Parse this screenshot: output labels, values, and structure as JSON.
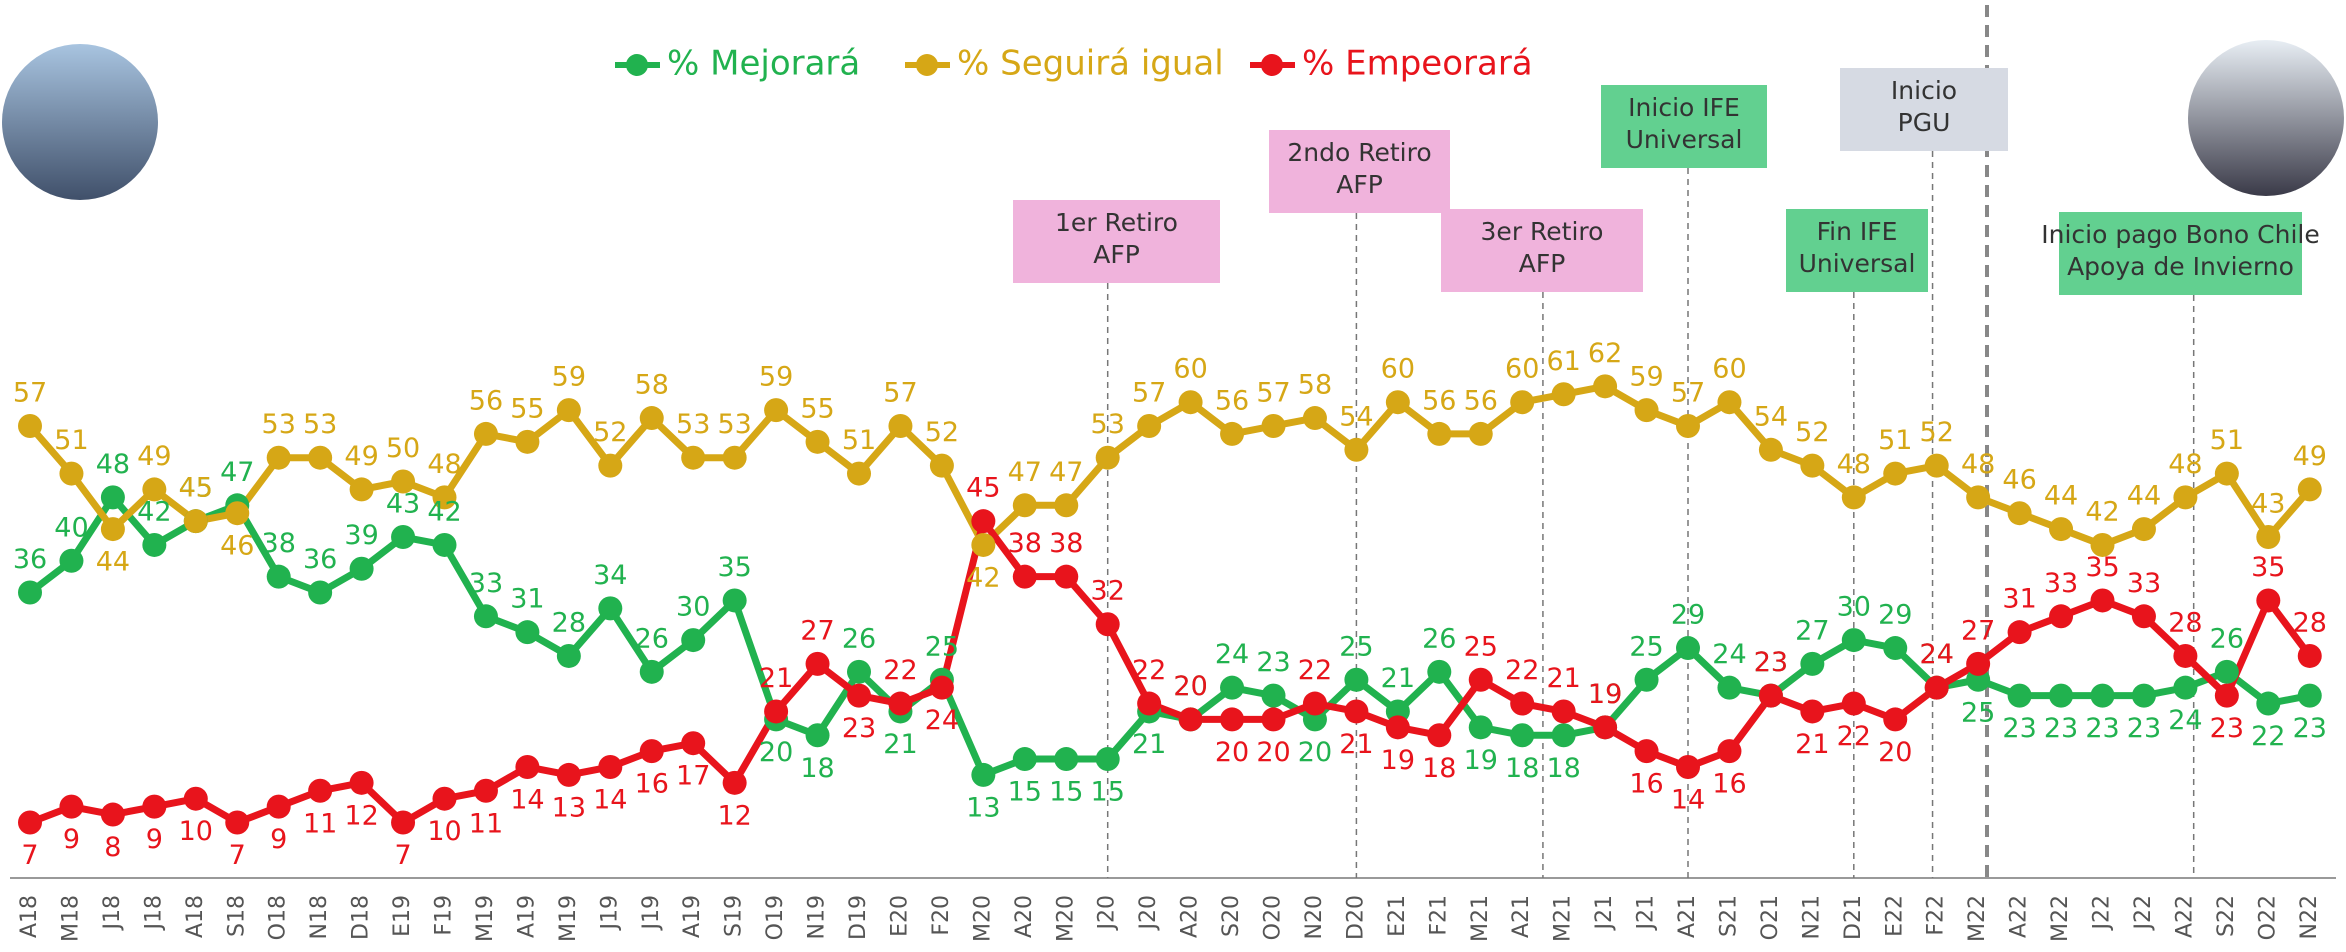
{
  "chart_data": {
    "type": "line",
    "categories": [
      "A18",
      "M18",
      "J18",
      "J18",
      "A18",
      "S18",
      "O18",
      "N18",
      "D18",
      "E19",
      "F19",
      "M19",
      "A19",
      "M19",
      "J19",
      "J19",
      "A19",
      "S19",
      "O19",
      "N19",
      "D19",
      "E20",
      "F20",
      "M20",
      "A20",
      "M20",
      "J20",
      "J20",
      "A20",
      "S20",
      "O20",
      "N20",
      "D20",
      "E21",
      "F21",
      "M21",
      "A21",
      "M21",
      "J21",
      "J21",
      "A21",
      "S21",
      "O21",
      "N21",
      "D21",
      "E22",
      "F22",
      "M22",
      "A22",
      "M22",
      "J22",
      "J22",
      "A22",
      "S22",
      "O22",
      "N22"
    ],
    "series": [
      {
        "name": "% Mejorará",
        "color": "#21b24f",
        "values": [
          36,
          40,
          48,
          42,
          45,
          47,
          38,
          36,
          39,
          43,
          42,
          33,
          31,
          28,
          34,
          26,
          30,
          35,
          20,
          18,
          26,
          21,
          25,
          13,
          15,
          15,
          15,
          21,
          20,
          24,
          23,
          20,
          25,
          21,
          26,
          19,
          18,
          18,
          19,
          25,
          29,
          24,
          23,
          27,
          30,
          29,
          24,
          25,
          23,
          23,
          23,
          23,
          24,
          26,
          22,
          23
        ]
      },
      {
        "name": "% Seguirá igual",
        "color": "#d6a716",
        "values": [
          57,
          51,
          44,
          49,
          45,
          46,
          53,
          53,
          49,
          50,
          48,
          56,
          55,
          59,
          52,
          58,
          53,
          53,
          59,
          55,
          51,
          57,
          52,
          42,
          47,
          47,
          53,
          57,
          60,
          56,
          57,
          58,
          54,
          60,
          56,
          56,
          60,
          61,
          62,
          59,
          57,
          60,
          54,
          52,
          48,
          51,
          52,
          48,
          46,
          44,
          42,
          44,
          48,
          51,
          43,
          49
        ]
      },
      {
        "name": "% Empeorará",
        "color": "#e8141c",
        "values": [
          7,
          9,
          8,
          9,
          10,
          7,
          9,
          11,
          12,
          7,
          10,
          11,
          14,
          13,
          14,
          16,
          17,
          12,
          21,
          27,
          23,
          22,
          24,
          45,
          38,
          38,
          32,
          22,
          20,
          20,
          20,
          22,
          21,
          19,
          18,
          25,
          22,
          21,
          19,
          16,
          14,
          16,
          23,
          21,
          22,
          20,
          24,
          27,
          31,
          33,
          35,
          33,
          28,
          23,
          35,
          28
        ]
      }
    ],
    "ylim": [
      0,
      100
    ],
    "annotations": [
      {
        "lines": [
          "1er Retiro",
          "AFP"
        ],
        "color": "#f0b3dc"
      },
      {
        "lines": [
          "2ndo Retiro",
          "AFP"
        ],
        "color": "#f0b3dc"
      },
      {
        "lines": [
          "3er Retiro",
          "AFP"
        ],
        "color": "#f0b3dc"
      },
      {
        "lines": [
          "Inicio IFE",
          "Universal"
        ],
        "color": "#62d090"
      },
      {
        "lines": [
          "Fin IFE",
          "Universal"
        ],
        "color": "#62d090"
      },
      {
        "lines": [
          "Inicio",
          "PGU"
        ],
        "color": "#d6dae3"
      },
      {
        "lines": [
          "Inicio pago Bono Chile",
          "Apoya de Invierno"
        ],
        "color": "#62d090"
      }
    ]
  }
}
